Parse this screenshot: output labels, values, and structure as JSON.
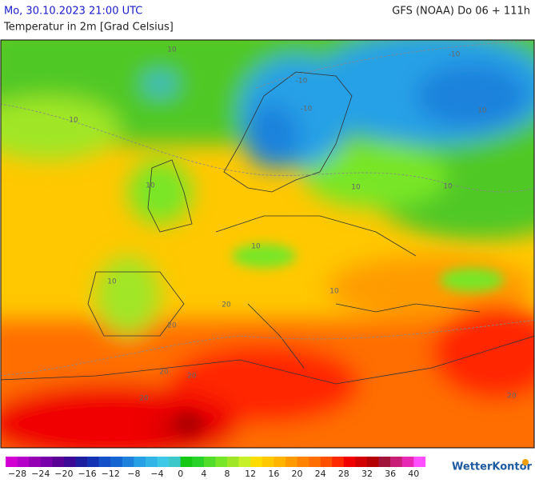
{
  "header": {
    "datetime": "Mo, 30.10.2023 21:00 UTC",
    "model": "GFS (NOAA) Do 06 + 111h",
    "subtitle": "Temperatur in 2m [Grad Celsius]"
  },
  "map": {
    "contour_labels": [
      "10",
      "-10",
      "-10",
      "10",
      "-10",
      "10",
      "10",
      "10",
      "10",
      "10",
      "10",
      "20",
      "20",
      "20",
      "20",
      "20",
      "10",
      "20"
    ]
  },
  "legend": {
    "colors": [
      "#d200d2",
      "#b400c8",
      "#9600b4",
      "#7800aa",
      "#5a0096",
      "#3c0a96",
      "#1e1ea0",
      "#1432b4",
      "#1450c8",
      "#1464d2",
      "#1e82dc",
      "#28a0e6",
      "#32b4e6",
      "#3cc8e6",
      "#3cc8c8",
      "#14c814",
      "#28d228",
      "#50dc28",
      "#78e628",
      "#a0e628",
      "#c8f028",
      "#ffdc00",
      "#ffc800",
      "#ffb400",
      "#ff9b00",
      "#ff8200",
      "#ff6e00",
      "#ff5000",
      "#ff2800",
      "#f00000",
      "#d20000",
      "#b40000",
      "#a0143c",
      "#c81e78",
      "#e628b4",
      "#ff50ff"
    ],
    "ticks": [
      "−28",
      "−24",
      "−20",
      "−16",
      "−12",
      "−8",
      "−4",
      "0",
      "4",
      "8",
      "12",
      "16",
      "20",
      "24",
      "28",
      "32",
      "36",
      "40"
    ]
  },
  "logo": "WetterKontor"
}
